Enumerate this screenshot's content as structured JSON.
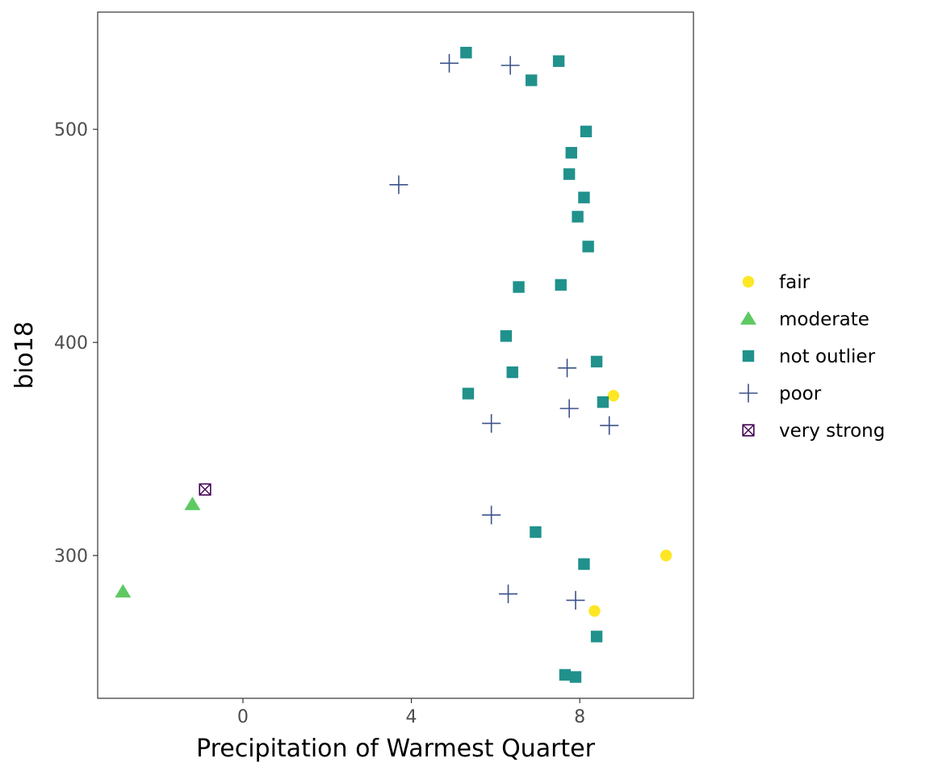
{
  "chart_data": {
    "type": "scatter",
    "xlabel": "Precipitation of Warmest Quarter",
    "ylabel": "bio18",
    "xlim": [
      -3.45,
      10.7
    ],
    "ylim": [
      233,
      555
    ],
    "xticks": [
      0,
      4,
      8
    ],
    "yticks": [
      300,
      400,
      500
    ],
    "grid": false,
    "legend_position": "right",
    "colors": {
      "fair": "#fde725",
      "moderate": "#5ec962",
      "not outlier": "#21918c",
      "poor": "#3b528b",
      "very strong": "#440154"
    },
    "series": [
      {
        "name": "fair",
        "marker": "circle",
        "points": [
          [
            8.8,
            375
          ],
          [
            10.05,
            300
          ],
          [
            8.35,
            274
          ]
        ]
      },
      {
        "name": "moderate",
        "marker": "triangle",
        "points": [
          [
            -1.2,
            324
          ],
          [
            -2.85,
            283
          ]
        ]
      },
      {
        "name": "not outlier",
        "marker": "square",
        "points": [
          [
            5.3,
            536
          ],
          [
            7.5,
            532
          ],
          [
            6.85,
            523
          ],
          [
            8.15,
            499
          ],
          [
            7.8,
            489
          ],
          [
            7.75,
            479
          ],
          [
            8.1,
            468
          ],
          [
            7.95,
            459
          ],
          [
            8.2,
            445
          ],
          [
            6.55,
            426
          ],
          [
            7.55,
            427
          ],
          [
            6.25,
            403
          ],
          [
            8.4,
            391
          ],
          [
            6.4,
            386
          ],
          [
            5.35,
            376
          ],
          [
            8.55,
            372
          ],
          [
            6.95,
            311
          ],
          [
            8.1,
            296
          ],
          [
            8.4,
            262
          ],
          [
            7.65,
            244
          ],
          [
            7.9,
            243
          ]
        ]
      },
      {
        "name": "poor",
        "marker": "plus",
        "points": [
          [
            4.9,
            531
          ],
          [
            6.35,
            530
          ],
          [
            3.7,
            474
          ],
          [
            7.7,
            388
          ],
          [
            7.75,
            369
          ],
          [
            5.9,
            362
          ],
          [
            8.7,
            361
          ],
          [
            5.9,
            319
          ],
          [
            6.3,
            282
          ],
          [
            7.9,
            279
          ]
        ]
      },
      {
        "name": "very strong",
        "marker": "boxcross",
        "points": [
          [
            -0.9,
            331
          ]
        ]
      }
    ]
  }
}
